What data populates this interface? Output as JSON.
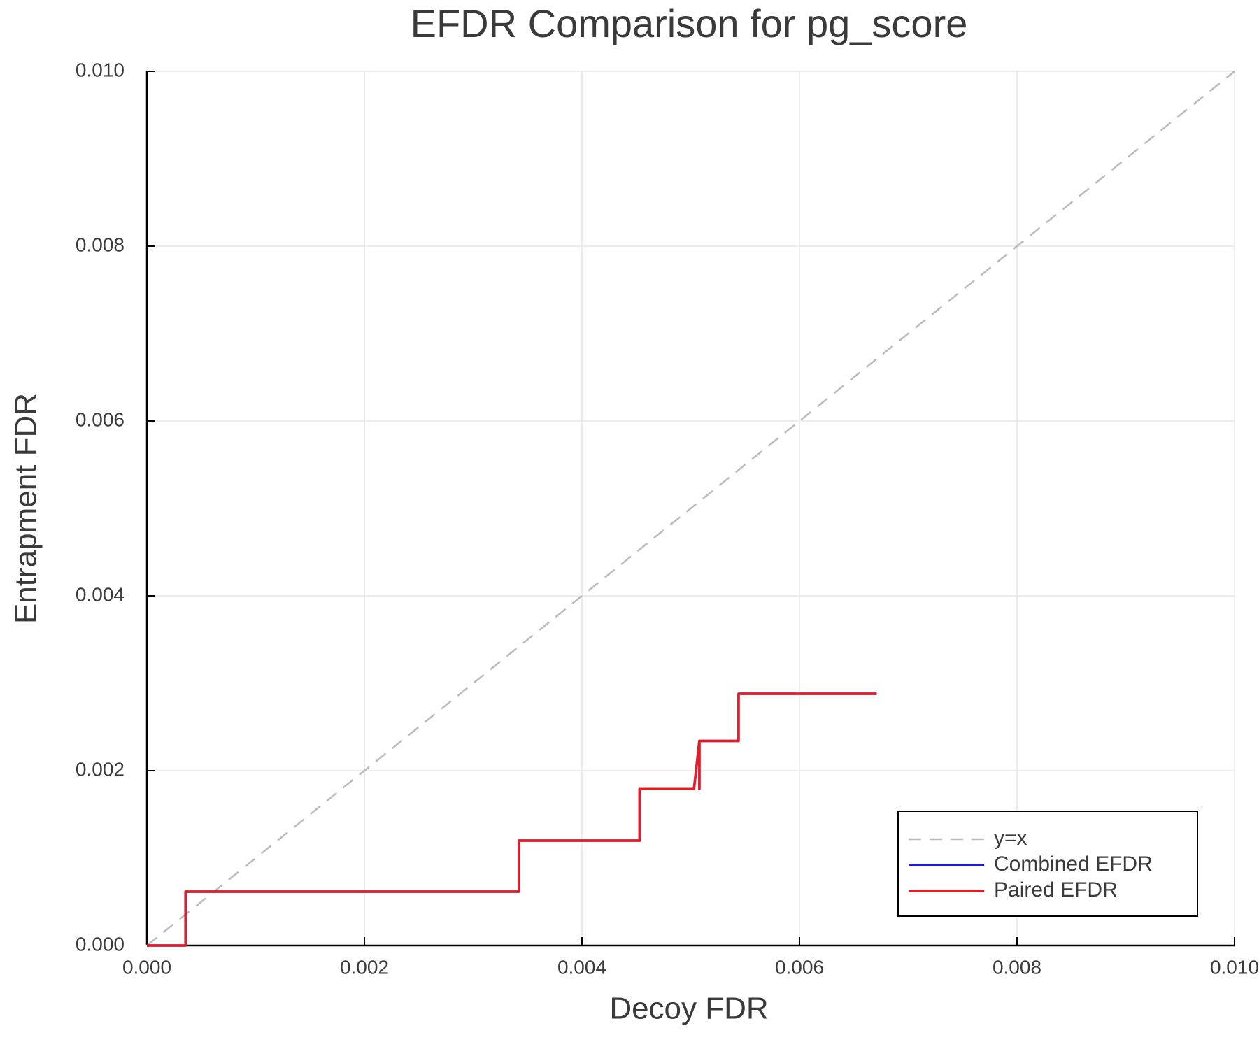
{
  "chart_data": {
    "type": "line",
    "title": "EFDR Comparison for pg_score",
    "x_label": "Decoy FDR",
    "y_label": "Entrapment FDR",
    "xlim": [
      0,
      0.01
    ],
    "ylim": [
      0,
      0.01
    ],
    "xticks": [
      {
        "value": 0,
        "label": "0.000"
      },
      0.002,
      0.004,
      0.006,
      0.008,
      {
        "value": 0.01,
        "label": "0.010"
      }
    ],
    "yticks": [
      {
        "value": 0,
        "label": "0.000"
      },
      0.002,
      0.004,
      0.006,
      0.008,
      {
        "value": 0.01,
        "label": "0.010"
      }
    ],
    "grid": true,
    "legend": "bottom right",
    "series": [
      {
        "name": "y=x",
        "color": "#bbbbbb",
        "dashed": true,
        "x": [
          0,
          0.01
        ],
        "values": [
          0,
          0.01
        ]
      },
      {
        "name": "Combined EFDR",
        "color": "#1c1cd8",
        "x": [
          0,
          0.000355,
          0.000355,
          0.00342,
          0.00342,
          0.00453,
          0.00453,
          0.00503,
          0.00508,
          0.00508,
          0.00508,
          0.00544,
          0.00544,
          0.00671
        ],
        "values": [
          0,
          0,
          0.000616,
          0.000616,
          0.0012,
          0.0012,
          0.00179,
          0.00179,
          0.00234,
          0.00179,
          0.00234,
          0.00234,
          0.00288,
          0.00288
        ]
      },
      {
        "name": "Paired EFDR",
        "color": "#e81a22",
        "x": [
          0,
          0.000355,
          0.000355,
          0.00342,
          0.00342,
          0.00453,
          0.00453,
          0.00503,
          0.00508,
          0.00508,
          0.00508,
          0.00544,
          0.00544,
          0.00671
        ],
        "values": [
          0,
          0,
          0.000616,
          0.000616,
          0.0012,
          0.0012,
          0.00179,
          0.00179,
          0.00234,
          0.00179,
          0.00234,
          0.00234,
          0.00288,
          0.00288
        ]
      }
    ]
  }
}
